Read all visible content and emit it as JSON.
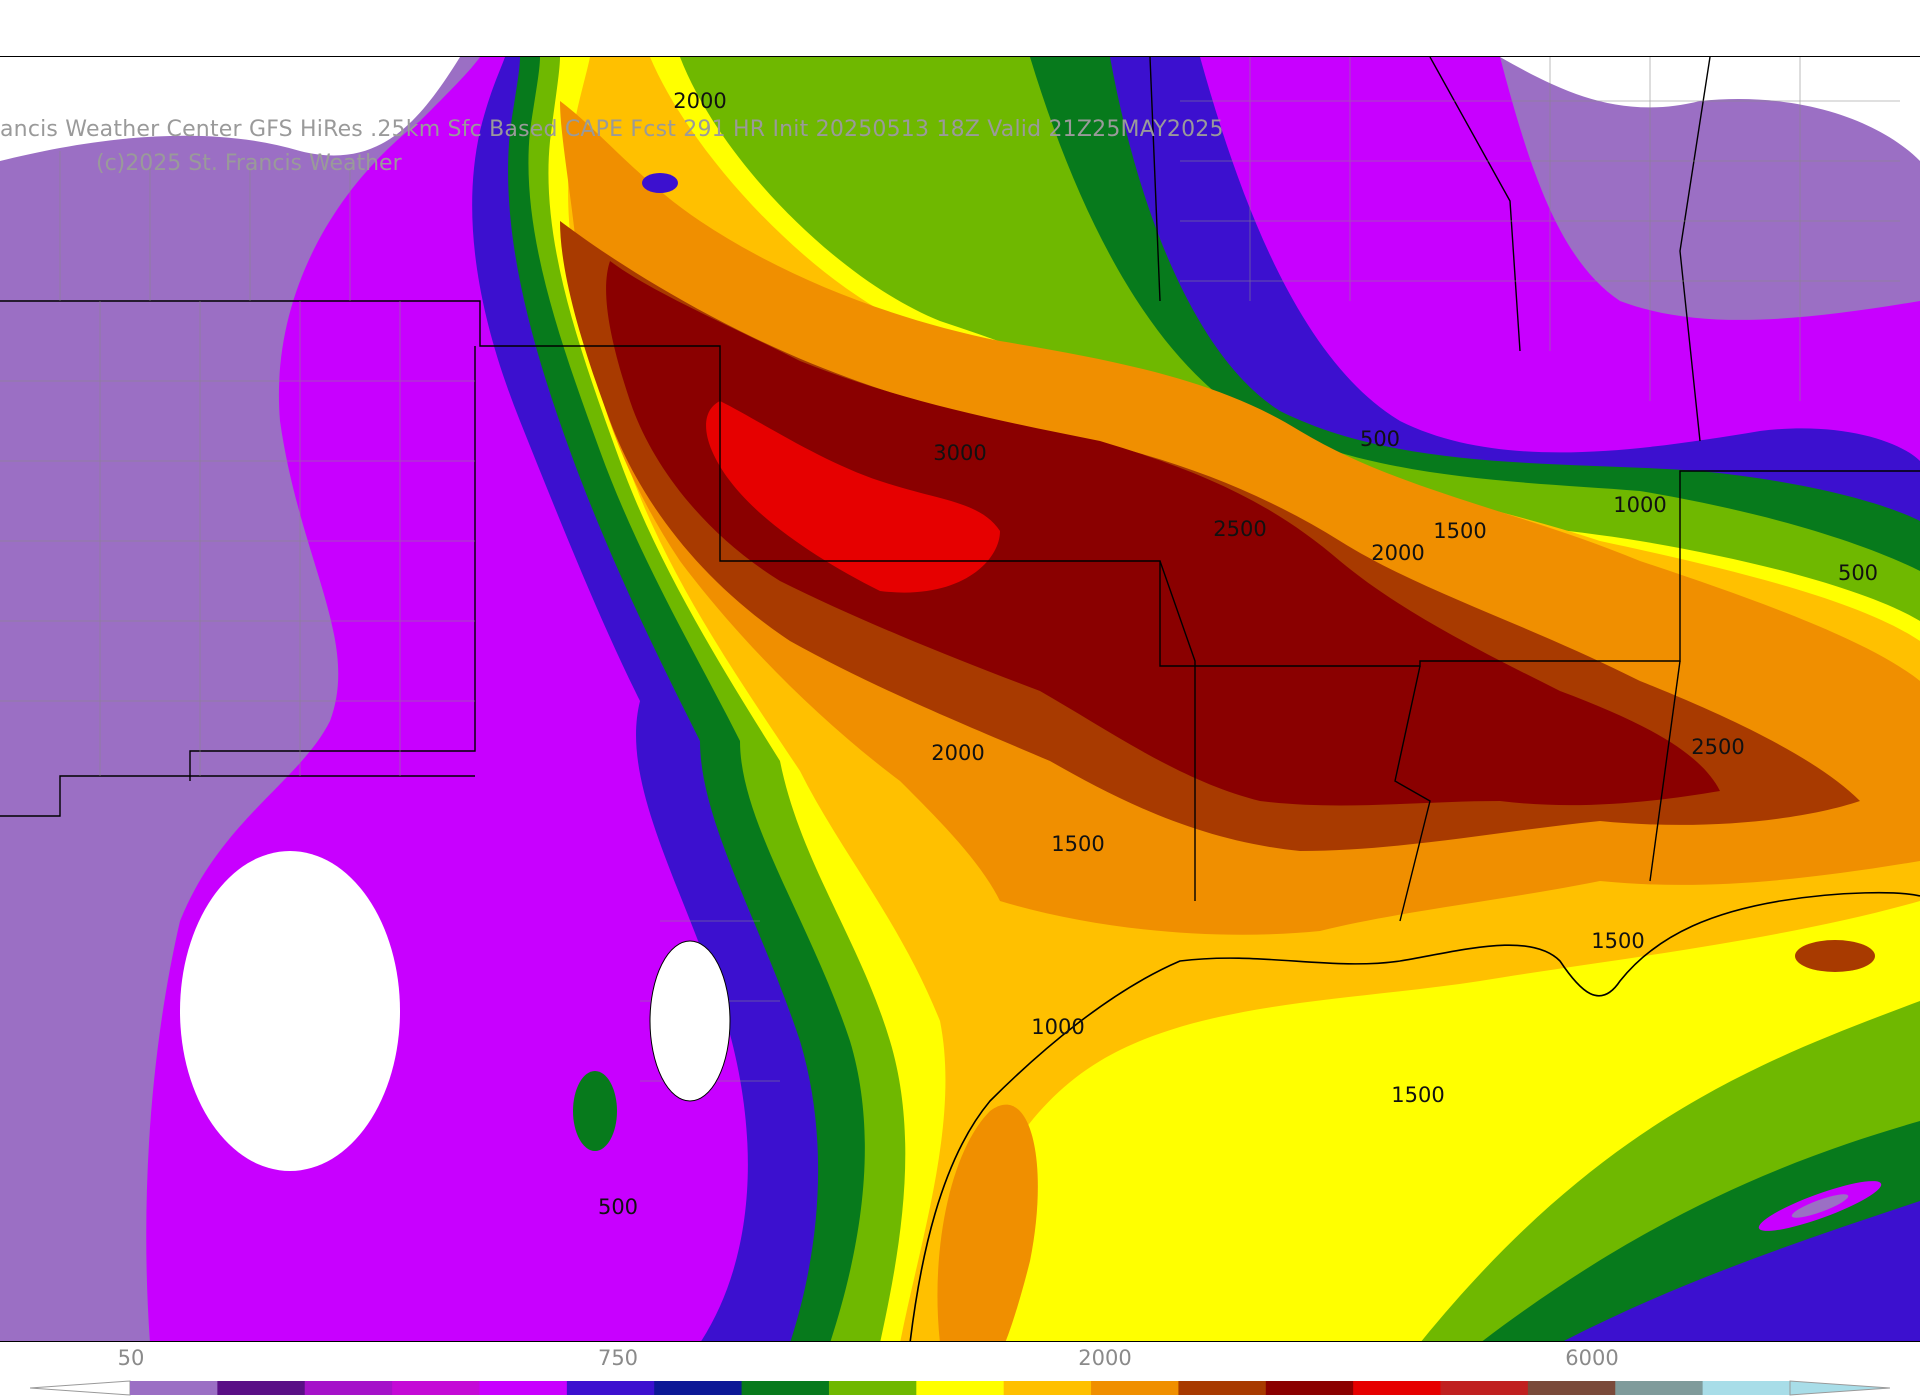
{
  "header": {
    "title": "ancis Weather Center GFS HiRes .25km Sfc Based CAPE  Fcst 291 HR Init 20250513 18Z  Valid 21Z25MAY2025",
    "copyright": "(c)2025 St. Francis Weather"
  },
  "contour_labels": [
    {
      "id": "label-2000-north",
      "text": "2000"
    },
    {
      "id": "label-3000",
      "text": "3000"
    },
    {
      "id": "label-2500-center",
      "text": "2500"
    },
    {
      "id": "label-1500-east",
      "text": "1500"
    },
    {
      "id": "label-2000-east",
      "text": "2000"
    },
    {
      "id": "label-500-north",
      "text": "500"
    },
    {
      "id": "label-1000-east",
      "text": "1000"
    },
    {
      "id": "label-500-east",
      "text": "500"
    },
    {
      "id": "label-2000-south",
      "text": "2000"
    },
    {
      "id": "label-2500-east",
      "text": "2500"
    },
    {
      "id": "label-1500-south",
      "text": "1500"
    },
    {
      "id": "label-1500-coast",
      "text": "1500"
    },
    {
      "id": "label-1000-south",
      "text": "1000"
    },
    {
      "id": "label-1500-gulf",
      "text": "1500"
    },
    {
      "id": "label-500-west",
      "text": "500"
    }
  ],
  "legend": {
    "tick_labels": [
      "50",
      "750",
      "2000",
      "6000"
    ],
    "colors": [
      "#9b6fc4",
      "#5a0f86",
      "#a512c9",
      "#c40ad6",
      "#c800ff",
      "#3c10cf",
      "#0c1896",
      "#077a1c",
      "#6fb800",
      "#ffff00",
      "#ffc000",
      "#f08f00",
      "#a83a00",
      "#8a0000",
      "#e60000",
      "#c02020",
      "#7a4a3a",
      "#7f9b9b",
      "#a8dde8"
    ]
  }
}
